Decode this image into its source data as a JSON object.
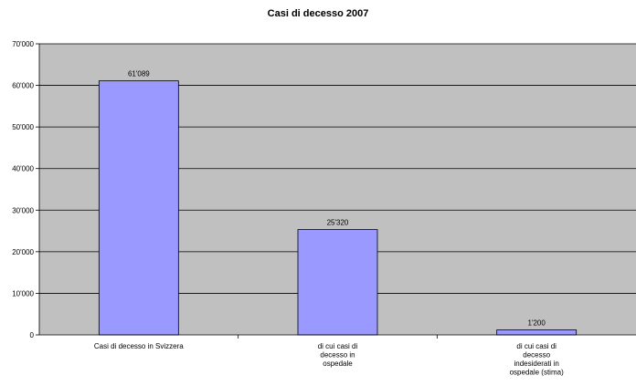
{
  "chart_data": {
    "type": "bar",
    "title": "Casi di decesso 2007",
    "categories": [
      [
        "Casi di decesso in Svizzera"
      ],
      [
        "di cui casi di",
        "decesso in",
        "ospedale"
      ],
      [
        "di cui casi di",
        "decesso",
        "indesiderati in",
        "ospedale (stima)"
      ]
    ],
    "values": [
      61089,
      25320,
      1200
    ],
    "value_labels": [
      "61'089",
      "25'320",
      "1'200"
    ],
    "yticks": [
      {
        "value": 0,
        "label": "0"
      },
      {
        "value": 10000,
        "label": "10'000"
      },
      {
        "value": 20000,
        "label": "20'000"
      },
      {
        "value": 30000,
        "label": "30'000"
      },
      {
        "value": 40000,
        "label": "40'000"
      },
      {
        "value": 50000,
        "label": "50'000"
      },
      {
        "value": 60000,
        "label": "60'000"
      },
      {
        "value": 70000,
        "label": "70'000"
      }
    ],
    "ylim": [
      0,
      70000
    ],
    "grid": true,
    "legend": "none",
    "colors": {
      "plot_background": "#c0c0c0",
      "bar_fill": "#9999ff",
      "bar_border": "#000000",
      "gridline": "#000000"
    }
  }
}
